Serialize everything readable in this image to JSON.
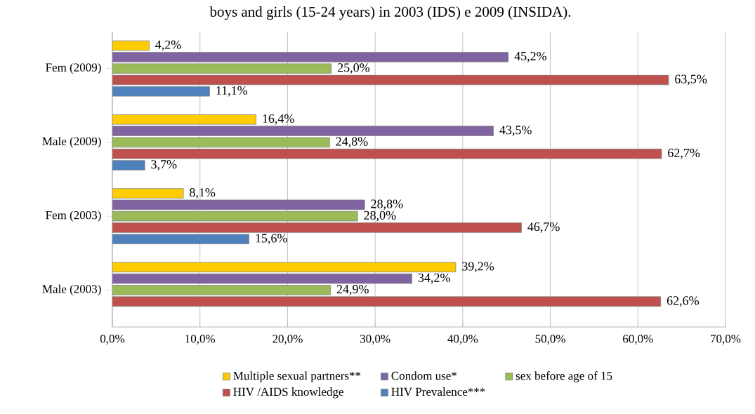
{
  "chart_data": {
    "type": "bar",
    "orientation": "horizontal",
    "title": "boys and girls (15-24 years) in 2003 (IDS) e 2009 (INSIDA).",
    "categories": [
      "Fem (2009)",
      "Male (2009)",
      "Fem (2003)",
      "Male (2003)"
    ],
    "series": [
      {
        "name": "Multiple sexual partners**",
        "color": "#ffcc00",
        "values": [
          4.2,
          16.4,
          8.1,
          39.2
        ],
        "value_labels": [
          "4,2%",
          "16,4%",
          "8,1%",
          "39,2%"
        ]
      },
      {
        "name": "Condom use*",
        "color": "#8064a2",
        "values": [
          45.2,
          43.5,
          28.8,
          34.2
        ],
        "value_labels": [
          "45,2%",
          "43,5%",
          "28,8%",
          "34,2%"
        ]
      },
      {
        "name": "sex before age of 15",
        "color": "#9bbb59",
        "values": [
          25.0,
          24.8,
          28.0,
          24.9
        ],
        "value_labels": [
          "25,0%",
          "24,8%",
          "28,0%",
          "24,9%"
        ]
      },
      {
        "name": "HIV /AIDS knowledge",
        "color": "#c0504d",
        "values": [
          63.5,
          62.7,
          46.7,
          62.6
        ],
        "value_labels": [
          "63,5%",
          "62,7%",
          "46,7%",
          "62,6%"
        ]
      },
      {
        "name": "HIV Prevalence***",
        "color": "#4f81bd",
        "values": [
          11.1,
          3.7,
          15.6,
          null
        ],
        "value_labels": [
          "11,1%",
          "3,7%",
          "15,6%",
          null
        ]
      }
    ],
    "xlim": [
      0,
      70
    ],
    "xticks": [
      {
        "value": 0,
        "label": "0,0%"
      },
      {
        "value": 10,
        "label": "10,0%"
      },
      {
        "value": 20,
        "label": "20,0%"
      },
      {
        "value": 30,
        "label": "30,0%"
      },
      {
        "value": 40,
        "label": "40,0%"
      },
      {
        "value": 50,
        "label": "50,0%"
      },
      {
        "value": 60,
        "label": "60,0%"
      },
      {
        "value": 70,
        "label": "70,0%"
      }
    ],
    "grid": "x",
    "legend": "bottom"
  }
}
